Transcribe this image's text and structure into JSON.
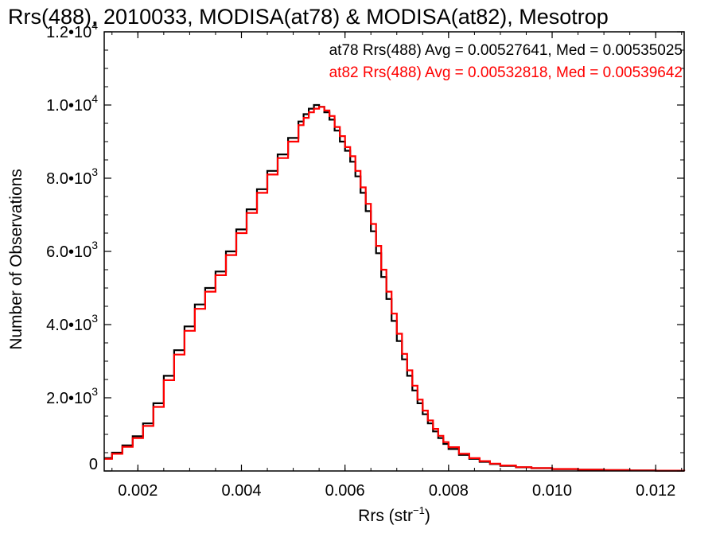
{
  "chart_data": {
    "type": "histogram-step",
    "title": "Rrs(488), 2010033, MODISA(at78) & MODISA(at82), Mesotrop",
    "xlabel": "Rrs (str",
    "xlabel_sup": "−1",
    "xlabel_suffix": ")",
    "ylabel": "Number of Observations",
    "xlim": [
      0.00135,
      0.01255
    ],
    "ylim": [
      0,
      12000
    ],
    "x_ticks": [
      {
        "value": 0.002,
        "label": "0.002"
      },
      {
        "value": 0.004,
        "label": "0.004"
      },
      {
        "value": 0.006,
        "label": "0.006"
      },
      {
        "value": 0.008,
        "label": "0.008"
      },
      {
        "value": 0.01,
        "label": "0.010"
      },
      {
        "value": 0.012,
        "label": "0.012"
      }
    ],
    "y_ticks": [
      {
        "value": 0,
        "mant": "0",
        "exp": ""
      },
      {
        "value": 2000,
        "mant": "2.0•10",
        "exp": "3"
      },
      {
        "value": 4000,
        "mant": "4.0•10",
        "exp": "3"
      },
      {
        "value": 6000,
        "mant": "6.0•10",
        "exp": "3"
      },
      {
        "value": 8000,
        "mant": "8.0•10",
        "exp": "3"
      },
      {
        "value": 10000,
        "mant": "1.0•10",
        "exp": "4"
      },
      {
        "value": 12000,
        "mant": "1.2•10",
        "exp": "4"
      }
    ],
    "grid": false,
    "legend_position": "top-right",
    "series": [
      {
        "name": "at78",
        "color": "#000000",
        "legend": "at78 Rrs(488) Avg = 0.00527641, Med = 0.00535025",
        "x": [
          0.00135,
          0.0015,
          0.0017,
          0.0019,
          0.0021,
          0.0023,
          0.0025,
          0.0027,
          0.0029,
          0.0031,
          0.0033,
          0.0035,
          0.0037,
          0.0039,
          0.0041,
          0.0043,
          0.0045,
          0.0047,
          0.0049,
          0.0051,
          0.0052,
          0.0053,
          0.0054,
          0.0055,
          0.0056,
          0.0057,
          0.0058,
          0.0059,
          0.006,
          0.0061,
          0.0062,
          0.0063,
          0.0064,
          0.0065,
          0.0066,
          0.0067,
          0.0068,
          0.0069,
          0.007,
          0.0071,
          0.0072,
          0.0073,
          0.0074,
          0.0075,
          0.0076,
          0.0077,
          0.0078,
          0.0079,
          0.008,
          0.0082,
          0.0084,
          0.0086,
          0.0088,
          0.009,
          0.0093,
          0.0096,
          0.01,
          0.0105,
          0.011,
          0.0115,
          0.012,
          0.01255
        ],
        "y": [
          350,
          500,
          700,
          950,
          1300,
          1850,
          2600,
          3300,
          3950,
          4550,
          5000,
          5450,
          6000,
          6600,
          7150,
          7700,
          8200,
          8650,
          9100,
          9550,
          9750,
          9900,
          10000,
          9950,
          9800,
          9600,
          9300,
          9000,
          8750,
          8450,
          8050,
          7600,
          7100,
          6550,
          5950,
          5300,
          4700,
          4100,
          3550,
          3050,
          2600,
          2200,
          1850,
          1550,
          1300,
          1080,
          900,
          740,
          600,
          440,
          330,
          250,
          190,
          140,
          100,
          75,
          50,
          35,
          22,
          15,
          8,
          0
        ]
      },
      {
        "name": "at82",
        "color": "#ff0000",
        "legend": "at82 Rrs(488) Avg = 0.00532818, Med = 0.00539642",
        "x": [
          0.00135,
          0.0015,
          0.0017,
          0.0019,
          0.0021,
          0.0023,
          0.0025,
          0.0027,
          0.0029,
          0.0031,
          0.0033,
          0.0035,
          0.0037,
          0.0039,
          0.0041,
          0.0043,
          0.0045,
          0.0047,
          0.0049,
          0.0051,
          0.0052,
          0.0053,
          0.0054,
          0.0055,
          0.0056,
          0.0057,
          0.0058,
          0.0059,
          0.006,
          0.0061,
          0.0062,
          0.0063,
          0.0064,
          0.0065,
          0.0066,
          0.0067,
          0.0068,
          0.0069,
          0.007,
          0.0071,
          0.0072,
          0.0073,
          0.0074,
          0.0075,
          0.0076,
          0.0077,
          0.0078,
          0.0079,
          0.008,
          0.0082,
          0.0084,
          0.0086,
          0.0088,
          0.009,
          0.0093,
          0.0096,
          0.01,
          0.0105,
          0.011,
          0.0115,
          0.012,
          0.01255
        ],
        "y": [
          330,
          470,
          660,
          900,
          1230,
          1750,
          2480,
          3180,
          3830,
          4430,
          4900,
          5350,
          5900,
          6500,
          7050,
          7600,
          8100,
          8550,
          9000,
          9450,
          9650,
          9800,
          9900,
          9950,
          9850,
          9700,
          9400,
          9150,
          8850,
          8600,
          8200,
          7750,
          7300,
          6750,
          6150,
          5500,
          4900,
          4300,
          3750,
          3200,
          2750,
          2330,
          1950,
          1650,
          1380,
          1150,
          960,
          790,
          650,
          470,
          350,
          270,
          200,
          150,
          105,
          80,
          55,
          38,
          24,
          16,
          9,
          0
        ]
      }
    ]
  }
}
